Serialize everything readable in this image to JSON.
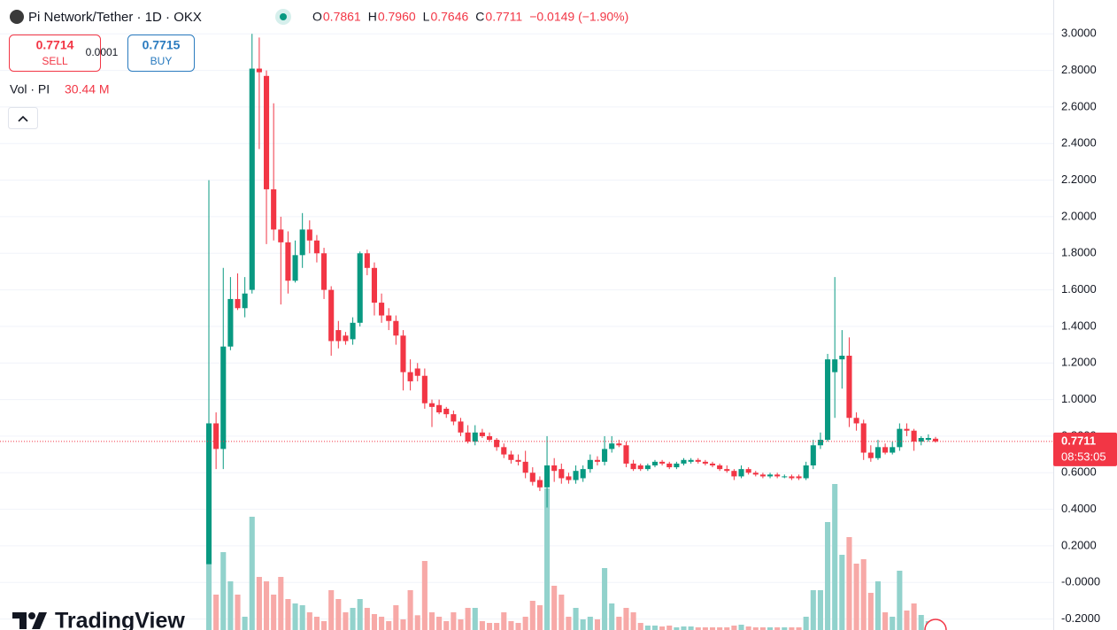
{
  "header": {
    "title": "Pi Network/Tether · 1D · OKX",
    "ohlc": [
      {
        "key": "O",
        "value": "0.7861"
      },
      {
        "key": "H",
        "value": "0.7960"
      },
      {
        "key": "L",
        "value": "0.7646"
      },
      {
        "key": "C",
        "value": "0.7711"
      }
    ],
    "change": "−0.0149 (−1.90%)"
  },
  "trade": {
    "sell_price": "0.7714",
    "sell_label": "SELL",
    "spread": "0.0001",
    "buy_price": "0.7715",
    "buy_label": "BUY"
  },
  "volume_legend": {
    "label": "Vol · PI",
    "value": "30.44 M"
  },
  "brand": "TradingView",
  "chart_data": {
    "type": "candlestick",
    "up_color": "#089981",
    "down_color": "#f23645",
    "up_volume_color": "#92d2cc",
    "down_volume_color": "#f7a9a7",
    "grid": true,
    "ylim": [
      -0.26,
      3.04
    ],
    "yticks": [
      {
        "value": 3,
        "label": "3.0000"
      },
      {
        "value": 2.8,
        "label": "2.8000"
      },
      {
        "value": 2.6,
        "label": "2.6000"
      },
      {
        "value": 2.4,
        "label": "2.4000"
      },
      {
        "value": 2.2,
        "label": "2.2000"
      },
      {
        "value": 2,
        "label": "2.0000"
      },
      {
        "value": 1.8,
        "label": "1.8000"
      },
      {
        "value": 1.6,
        "label": "1.6000"
      },
      {
        "value": 1.4,
        "label": "1.4000"
      },
      {
        "value": 1.2,
        "label": "1.2000"
      },
      {
        "value": 1,
        "label": "1.0000"
      },
      {
        "value": 0.8,
        "label": "0.8000"
      },
      {
        "value": 0.6,
        "label": "0.6000"
      },
      {
        "value": 0.4,
        "label": "0.4000"
      },
      {
        "value": 0.2,
        "label": "0.2000"
      },
      {
        "value": 0,
        "label": "-0.0000"
      },
      {
        "value": -0.2,
        "label": "-0.2000"
      }
    ],
    "last_price": 0.7711,
    "countdown": "08:53:05",
    "open": [
      0.1,
      0.87,
      0.73,
      1.29,
      1.55,
      1.5,
      1.6,
      2.81,
      2.77,
      2.15,
      1.93,
      1.86,
      1.65,
      1.79,
      1.93,
      1.87,
      1.8,
      1.6,
      1.38,
      1.35,
      1.33,
      1.42,
      1.8,
      1.72,
      1.53,
      1.46,
      1.43,
      1.35,
      1.15,
      1.17,
      1.13,
      0.98,
      0.97,
      0.95,
      0.92,
      0.88,
      0.82,
      0.77,
      0.82,
      0.8,
      0.78,
      0.74,
      0.7,
      0.67,
      0.66,
      0.6,
      0.56,
      0.52,
      0.64,
      0.62,
      0.58,
      0.56,
      0.57,
      0.62,
      0.67,
      0.66,
      0.73,
      0.76,
      0.75,
      0.65,
      0.64,
      0.62,
      0.64,
      0.66,
      0.65,
      0.63,
      0.65,
      0.66,
      0.67,
      0.66,
      0.65,
      0.64,
      0.62,
      0.61,
      0.58,
      0.62,
      0.6,
      0.59,
      0.58,
      0.59,
      0.58,
      0.58,
      0.58,
      0.57,
      0.64,
      0.75,
      0.78,
      1.15,
      1.22,
      1.24,
      0.9,
      0.87,
      0.71,
      0.68,
      0.74,
      0.71,
      0.74,
      0.84,
      0.83,
      0.77,
      0.78,
      0.7861
    ],
    "high": [
      2.2,
      0.93,
      1.72,
      1.67,
      1.69,
      1.67,
      3.0,
      2.98,
      2.8,
      2.62,
      2.0,
      1.92,
      1.87,
      2.02,
      1.98,
      1.9,
      1.83,
      1.62,
      1.43,
      1.37,
      1.45,
      1.81,
      1.82,
      1.75,
      1.58,
      1.5,
      1.46,
      1.38,
      1.22,
      1.2,
      1.17,
      1.0,
      1.0,
      0.96,
      0.94,
      0.9,
      0.86,
      0.86,
      0.84,
      0.82,
      0.79,
      0.76,
      0.72,
      0.7,
      0.72,
      0.63,
      0.58,
      0.8,
      0.68,
      0.65,
      0.6,
      0.64,
      0.64,
      0.7,
      0.69,
      0.8,
      0.8,
      0.78,
      0.77,
      0.67,
      0.65,
      0.65,
      0.67,
      0.67,
      0.66,
      0.66,
      0.68,
      0.68,
      0.68,
      0.67,
      0.66,
      0.65,
      0.64,
      0.62,
      0.64,
      0.63,
      0.61,
      0.6,
      0.6,
      0.6,
      0.59,
      0.59,
      0.59,
      0.66,
      0.78,
      0.82,
      1.25,
      1.67,
      1.38,
      1.34,
      0.93,
      0.89,
      0.75,
      0.78,
      0.76,
      0.77,
      0.87,
      0.87,
      0.84,
      0.8,
      0.81,
      0.796
    ],
    "low": [
      0.1,
      0.62,
      0.62,
      1.27,
      1.49,
      1.45,
      1.58,
      2.37,
      1.85,
      1.87,
      1.52,
      1.58,
      1.64,
      1.72,
      1.8,
      1.75,
      1.55,
      1.24,
      1.28,
      1.3,
      1.3,
      1.4,
      1.68,
      1.46,
      1.42,
      1.38,
      1.3,
      1.05,
      1.05,
      1.1,
      0.95,
      0.85,
      0.92,
      0.9,
      0.86,
      0.8,
      0.76,
      0.75,
      0.79,
      0.77,
      0.72,
      0.68,
      0.65,
      0.64,
      0.57,
      0.53,
      0.5,
      0.41,
      0.55,
      0.54,
      0.54,
      0.54,
      0.55,
      0.6,
      0.64,
      0.64,
      0.71,
      0.74,
      0.63,
      0.61,
      0.61,
      0.61,
      0.63,
      0.64,
      0.62,
      0.62,
      0.64,
      0.65,
      0.65,
      0.64,
      0.63,
      0.61,
      0.6,
      0.56,
      0.57,
      0.59,
      0.58,
      0.57,
      0.57,
      0.57,
      0.57,
      0.56,
      0.56,
      0.56,
      0.62,
      0.73,
      0.77,
      0.9,
      1.06,
      0.85,
      0.83,
      0.67,
      0.66,
      0.67,
      0.7,
      0.7,
      0.72,
      0.8,
      0.72,
      0.75,
      0.77,
      0.7646
    ],
    "close": [
      0.87,
      0.73,
      1.29,
      1.55,
      1.5,
      1.58,
      2.81,
      2.79,
      2.15,
      1.93,
      1.86,
      1.65,
      1.79,
      1.93,
      1.87,
      1.8,
      1.6,
      1.32,
      1.32,
      1.32,
      1.42,
      1.8,
      1.72,
      1.53,
      1.46,
      1.43,
      1.35,
      1.15,
      1.1,
      1.13,
      0.98,
      0.96,
      0.93,
      0.92,
      0.88,
      0.82,
      0.77,
      0.82,
      0.8,
      0.78,
      0.74,
      0.7,
      0.67,
      0.66,
      0.6,
      0.55,
      0.52,
      0.64,
      0.61,
      0.57,
      0.56,
      0.61,
      0.62,
      0.67,
      0.66,
      0.73,
      0.76,
      0.75,
      0.65,
      0.62,
      0.62,
      0.64,
      0.66,
      0.65,
      0.63,
      0.65,
      0.67,
      0.67,
      0.66,
      0.65,
      0.64,
      0.62,
      0.61,
      0.58,
      0.62,
      0.6,
      0.59,
      0.58,
      0.59,
      0.58,
      0.58,
      0.57,
      0.57,
      0.64,
      0.75,
      0.78,
      1.22,
      1.22,
      1.24,
      0.9,
      0.87,
      0.71,
      0.68,
      0.74,
      0.71,
      0.74,
      0.84,
      0.83,
      0.77,
      0.79,
      0.79,
      0.7711
    ],
    "volume": [
      450,
      240,
      528,
      330,
      240,
      90,
      768,
      360,
      330,
      240,
      360,
      210,
      180,
      168,
      120,
      90,
      60,
      270,
      210,
      120,
      150,
      210,
      150,
      108,
      90,
      60,
      168,
      72,
      270,
      100,
      468,
      120,
      90,
      60,
      120,
      72,
      150,
      150,
      60,
      48,
      48,
      120,
      60,
      48,
      90,
      198,
      168,
      960,
      300,
      240,
      90,
      150,
      72,
      90,
      72,
      420,
      180,
      90,
      150,
      120,
      48,
      30,
      30,
      24,
      30,
      18,
      24,
      24,
      18,
      18,
      18,
      18,
      18,
      30,
      36,
      24,
      18,
      18,
      18,
      18,
      18,
      18,
      18,
      90,
      270,
      270,
      732,
      990,
      510,
      630,
      450,
      480,
      252,
      330,
      120,
      90,
      402,
      132,
      180,
      102,
      60,
      30.44
    ]
  }
}
